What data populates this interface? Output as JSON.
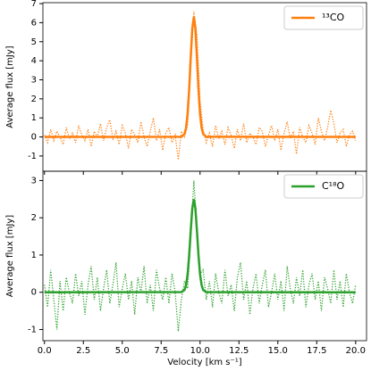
{
  "chart_data": [
    {
      "type": "line",
      "ylabel": "Average flux [mJy]",
      "xlim": [
        -0.1,
        20.7
      ],
      "ylim": [
        -1.8,
        7.05
      ],
      "xticks": [
        0,
        2.5,
        5,
        7.5,
        10,
        12.5,
        15,
        17.5,
        20
      ],
      "yticks": [
        -1,
        0,
        1,
        2,
        3,
        4,
        5,
        6,
        7
      ],
      "legend": "upper right",
      "x": [
        0,
        0.2,
        0.4,
        0.6,
        0.8,
        1,
        1.2,
        1.4,
        1.6,
        1.8,
        2,
        2.2,
        2.4,
        2.6,
        2.8,
        3,
        3.2,
        3.4,
        3.6,
        3.8,
        4,
        4.2,
        4.4,
        4.6,
        4.8,
        5,
        5.2,
        5.4,
        5.6,
        5.8,
        6,
        6.2,
        6.4,
        6.6,
        6.8,
        7,
        7.2,
        7.4,
        7.6,
        7.8,
        8,
        8.2,
        8.4,
        8.6,
        8.8,
        9,
        9.2,
        9.4,
        9.6,
        9.8,
        10,
        10.2,
        10.4,
        10.6,
        10.8,
        11,
        11.2,
        11.4,
        11.6,
        11.8,
        12,
        12.2,
        12.4,
        12.6,
        12.8,
        13,
        13.2,
        13.4,
        13.6,
        13.8,
        14,
        14.2,
        14.4,
        14.6,
        14.8,
        15,
        15.2,
        15.4,
        15.6,
        15.8,
        16,
        16.2,
        16.4,
        16.6,
        16.8,
        17,
        17.2,
        17.4,
        17.6,
        17.8,
        18,
        18.2,
        18.4,
        18.6,
        18.8,
        19,
        19.2,
        19.4,
        19.6,
        19.8,
        20
      ],
      "series": [
        {
          "color": "#ff7f0e",
          "style": "dotted",
          "values": [
            0.1,
            -0.3,
            0.4,
            -0.2,
            0.3,
            0.0,
            -0.4,
            0.5,
            -0.1,
            0.2,
            -0.3,
            0.6,
            0.1,
            -0.2,
            0.4,
            -0.5,
            0.3,
            0.0,
            0.7,
            -0.2,
            0.5,
            0.9,
            -0.1,
            0.3,
            -0.4,
            0.6,
            0.2,
            -0.6,
            0.4,
            0.1,
            -0.3,
            0.8,
            0.0,
            -0.5,
            0.3,
            1.0,
            -0.2,
            0.4,
            -0.7,
            0.2,
            0.5,
            -0.3,
            0.1,
            -1.2,
            0.3,
            0.0,
            0.6,
            3.8,
            6.6,
            5.4,
            1.9,
            0.4,
            -0.3,
            0.2,
            -0.5,
            0.6,
            -0.1,
            0.3,
            -0.4,
            0.5,
            0.1,
            -0.6,
            0.4,
            -0.2,
            0.7,
            -0.3,
            0.2,
            0.0,
            -0.4,
            0.5,
            0.3,
            -0.5,
            0.1,
            0.6,
            -0.2,
            0.4,
            -0.7,
            0.2,
            0.8,
            -0.1,
            0.3,
            -0.9,
            0.5,
            0.0,
            -0.3,
            0.6,
            0.2,
            -0.4,
            1.0,
            0.3,
            -0.2,
            0.5,
            1.4,
            0.7,
            -0.3,
            0.2,
            0.4,
            -0.5,
            0.1,
            0.3,
            -0.2
          ]
        },
        {
          "name": "¹³CO",
          "color": "#ff7f0e",
          "style": "solid",
          "x": [
            0,
            8.8,
            9.0,
            9.1,
            9.2,
            9.3,
            9.4,
            9.5,
            9.6,
            9.7,
            9.8,
            9.9,
            10.0,
            10.1,
            10.2,
            10.4,
            20
          ],
          "values": [
            0,
            0.01,
            0.15,
            0.48,
            1.21,
            2.49,
            4.17,
            5.68,
            6.3,
            5.68,
            4.17,
            2.49,
            1.21,
            0.48,
            0.15,
            0.01,
            0
          ]
        }
      ]
    },
    {
      "type": "line",
      "xlabel": "Velocity [km s⁻¹]",
      "ylabel": "Average flux [mJy]",
      "xlim": [
        -0.1,
        20.7
      ],
      "ylim": [
        -1.3,
        3.25
      ],
      "xticks": [
        {
          "value": 0,
          "label": "0.0"
        },
        2.5,
        {
          "value": 5,
          "label": "5.0"
        },
        7.5,
        {
          "value": 10,
          "label": "10.0"
        },
        12.5,
        {
          "value": 15,
          "label": "15.0"
        },
        17.5,
        {
          "value": 20,
          "label": "20.0"
        }
      ],
      "yticks": [
        -1,
        0,
        1,
        2,
        3
      ],
      "legend": "upper right",
      "x": [
        0,
        0.2,
        0.4,
        0.6,
        0.8,
        1,
        1.2,
        1.4,
        1.6,
        1.8,
        2,
        2.2,
        2.4,
        2.6,
        2.8,
        3,
        3.2,
        3.4,
        3.6,
        3.8,
        4,
        4.2,
        4.4,
        4.6,
        4.8,
        5,
        5.2,
        5.4,
        5.6,
        5.8,
        6,
        6.2,
        6.4,
        6.6,
        6.8,
        7,
        7.2,
        7.4,
        7.6,
        7.8,
        8,
        8.2,
        8.4,
        8.6,
        8.8,
        9,
        9.2,
        9.4,
        9.6,
        9.8,
        10,
        10.2,
        10.4,
        10.6,
        10.8,
        11,
        11.2,
        11.4,
        11.6,
        11.8,
        12,
        12.2,
        12.4,
        12.6,
        12.8,
        13,
        13.2,
        13.4,
        13.6,
        13.8,
        14,
        14.2,
        14.4,
        14.6,
        14.8,
        15,
        15.2,
        15.4,
        15.6,
        15.8,
        16,
        16.2,
        16.4,
        16.6,
        16.8,
        17,
        17.2,
        17.4,
        17.6,
        17.8,
        18,
        18.2,
        18.4,
        18.6,
        18.8,
        19,
        19.2,
        19.4,
        19.6,
        19.8,
        20
      ],
      "series": [
        {
          "color": "#2ca02c",
          "style": "dotted",
          "values": [
            0.2,
            -0.4,
            0.6,
            -0.2,
            -1.0,
            0.3,
            -0.5,
            0.4,
            0.0,
            -0.3,
            0.5,
            -0.1,
            0.3,
            -0.6,
            0.2,
            0.7,
            -0.2,
            0.4,
            -0.5,
            0.1,
            0.6,
            -0.3,
            0.2,
            0.8,
            -0.4,
            0.1,
            0.5,
            -0.2,
            0.3,
            -0.6,
            0.4,
            0.0,
            0.7,
            -0.3,
            0.2,
            -0.5,
            0.6,
            0.1,
            -0.2,
            0.4,
            -0.3,
            0.5,
            0.0,
            -1.05,
            -0.2,
            0.3,
            0.1,
            1.4,
            3.0,
            1.8,
            0.5,
            0.6,
            -0.2,
            0.3,
            -0.4,
            0.5,
            0.0,
            -0.3,
            0.6,
            -0.1,
            0.2,
            -0.5,
            0.4,
            0.8,
            -0.2,
            0.3,
            -0.6,
            0.1,
            0.5,
            -0.3,
            0.2,
            0.6,
            -0.4,
            0.0,
            0.5,
            -0.2,
            0.3,
            -0.5,
            0.7,
            0.1,
            -0.3,
            0.4,
            -0.1,
            0.6,
            -0.4,
            0.2,
            0.5,
            -0.2,
            0.3,
            -0.5,
            0.4,
            0.1,
            -0.3,
            0.6,
            -0.2,
            0.3,
            -0.4,
            0.5,
            0.0,
            -0.3,
            0.2
          ]
        },
        {
          "name": "C¹⁸O",
          "color": "#2ca02c",
          "style": "solid",
          "x": [
            0,
            8.8,
            9.0,
            9.1,
            9.2,
            9.3,
            9.4,
            9.5,
            9.6,
            9.7,
            9.8,
            9.9,
            10.0,
            10.1,
            10.2,
            10.4,
            20
          ],
          "values": [
            0,
            0.004,
            0.06,
            0.19,
            0.48,
            0.99,
            1.65,
            2.25,
            2.5,
            2.25,
            1.65,
            0.99,
            0.48,
            0.19,
            0.06,
            0.004,
            0
          ]
        }
      ]
    }
  ]
}
